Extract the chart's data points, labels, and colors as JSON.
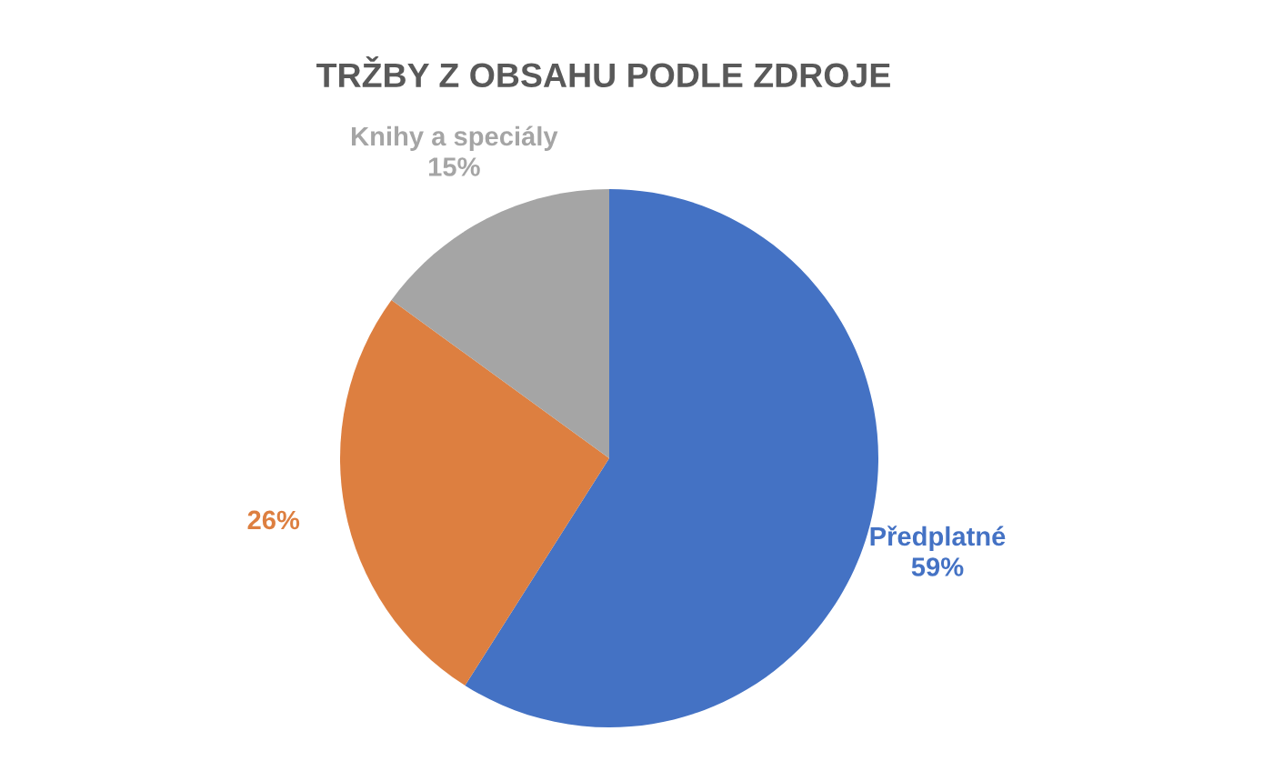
{
  "chart_data": {
    "type": "pie",
    "title": "TRŽBY Z OBSAHU PODLE ZDROJE",
    "categories": [
      "Předplatné",
      null,
      "Knihy a speciály"
    ],
    "values": [
      59,
      26,
      15
    ],
    "value_labels": [
      "59%",
      "26%",
      "15%"
    ],
    "colors": [
      "#4472c4",
      "#dd7f40",
      "#a5a5a5"
    ]
  }
}
